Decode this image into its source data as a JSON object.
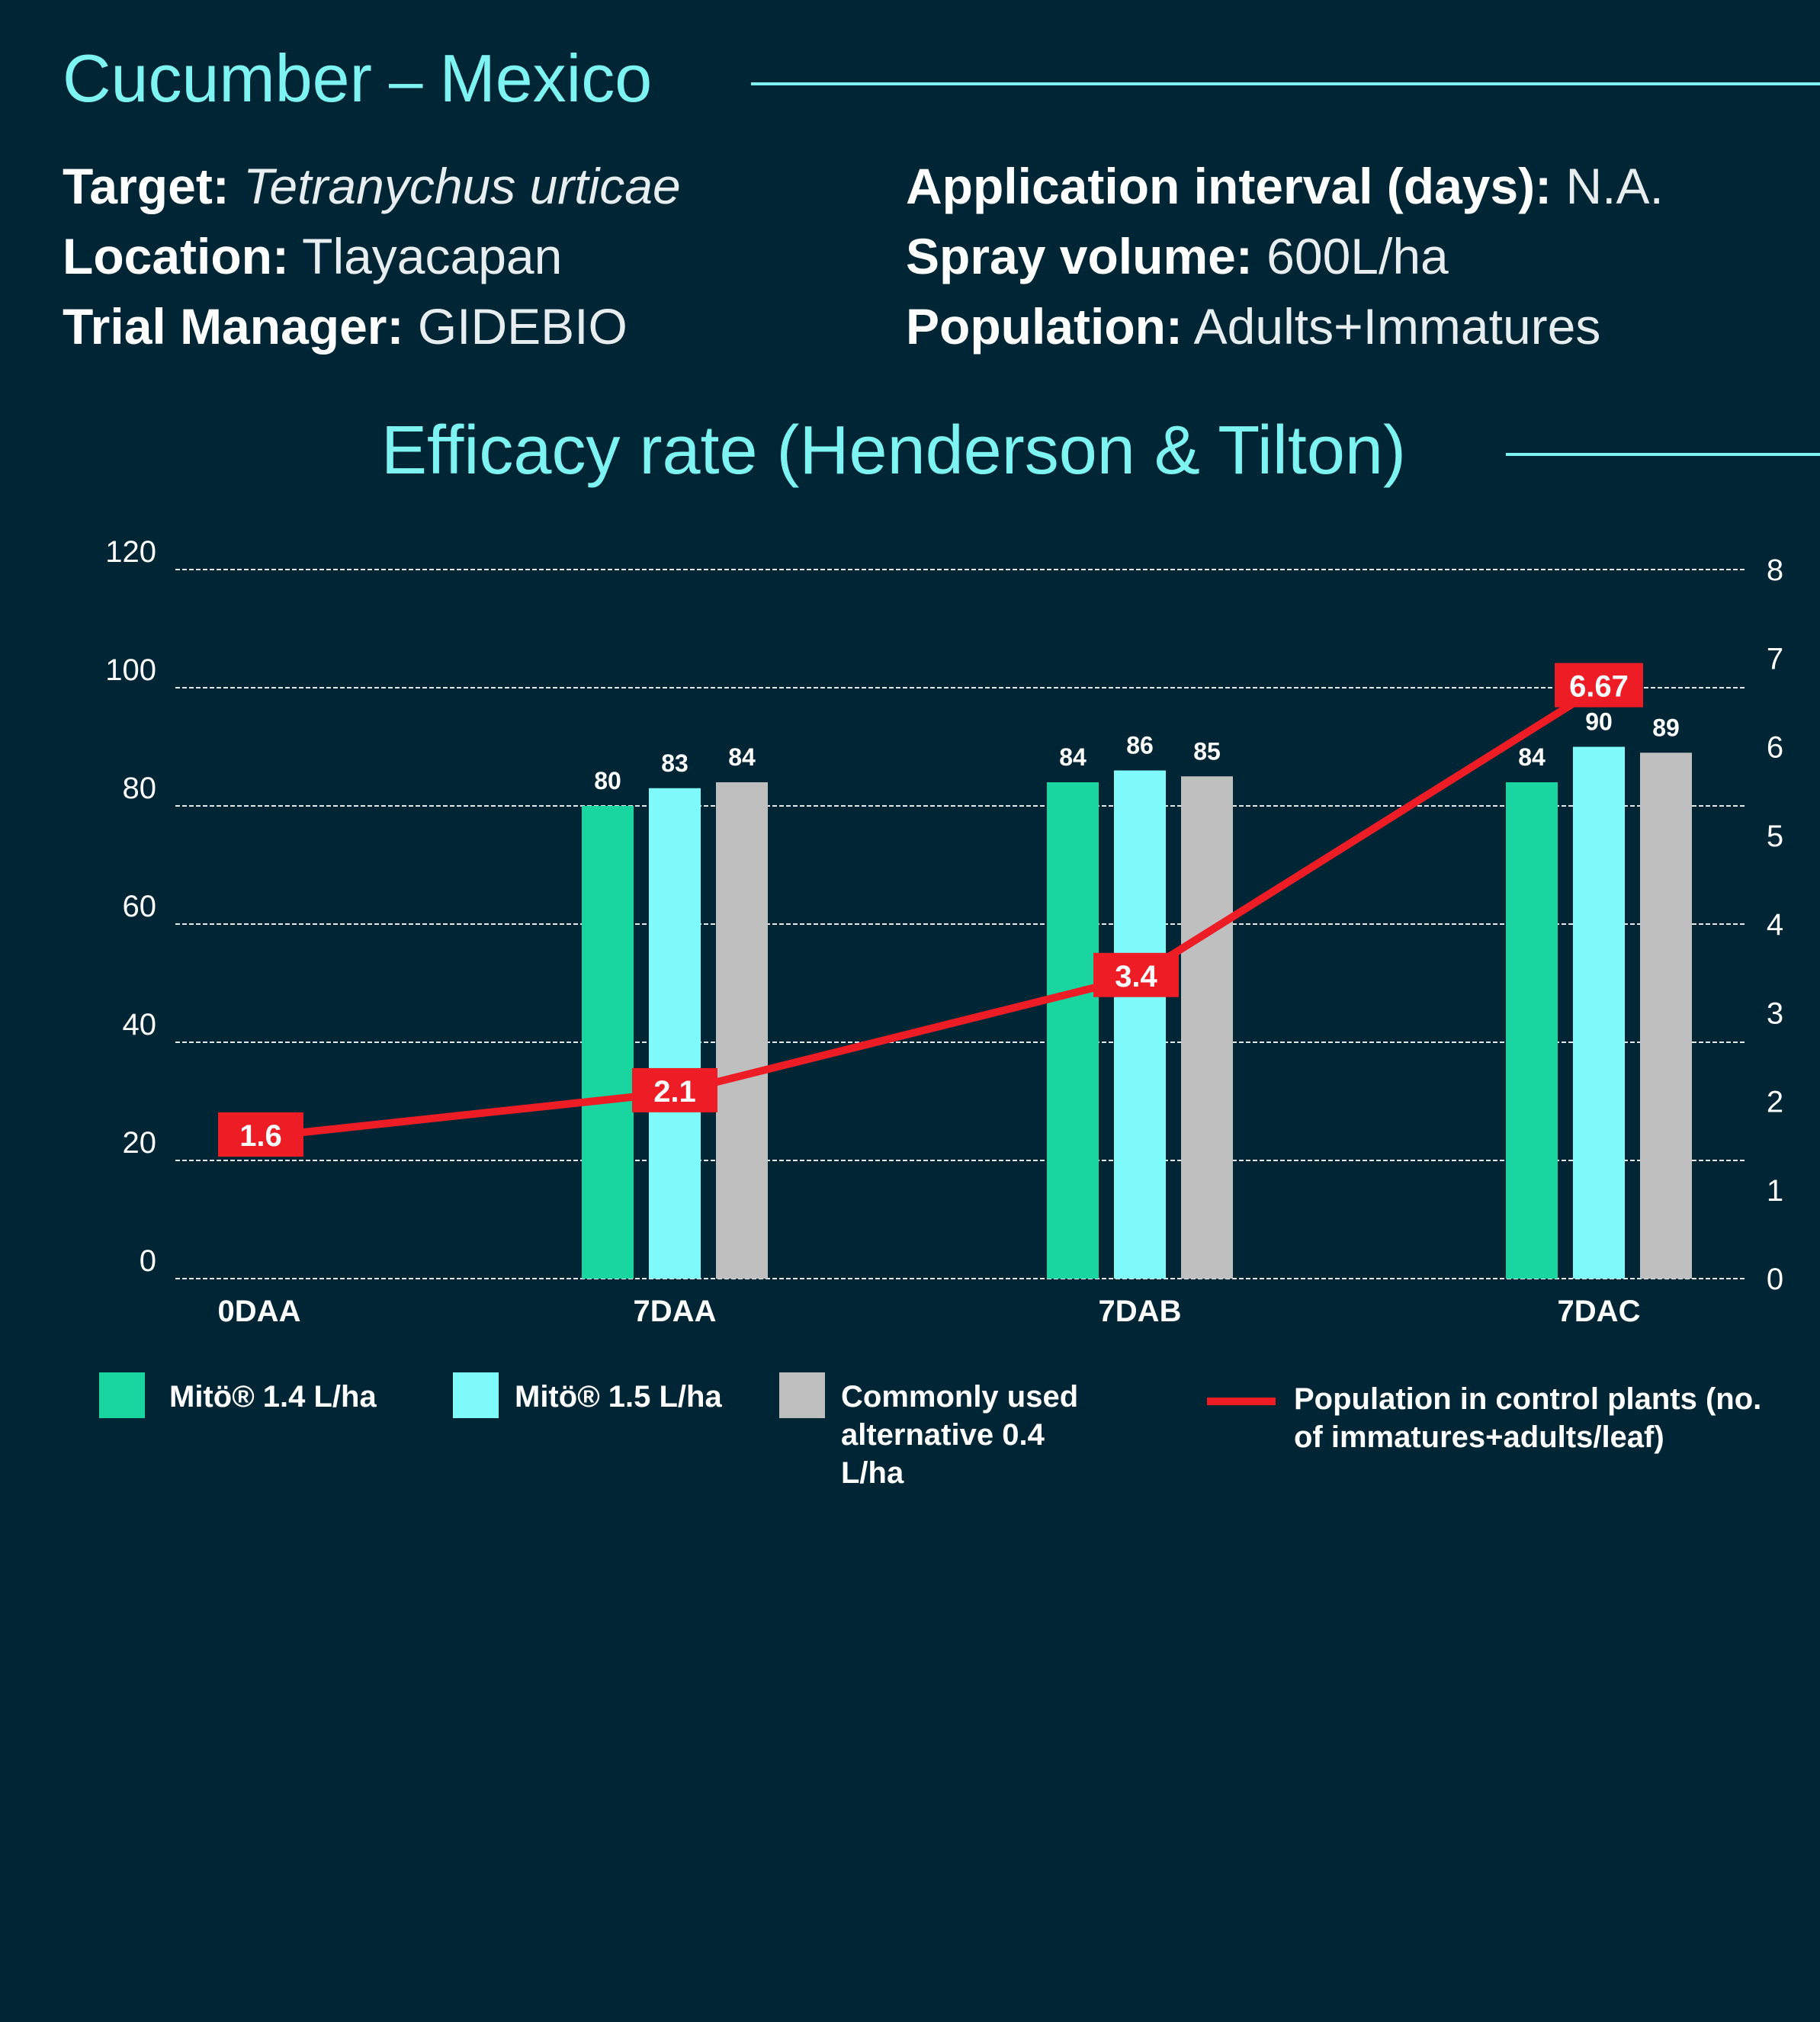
{
  "header": {
    "crop": "Cucumber",
    "separator": "–",
    "country": "Mexico"
  },
  "info_left": [
    {
      "key": "Target:",
      "value": "Tetranychus urticae"
    },
    {
      "key": "Location:",
      "value": "Tlayacapan"
    },
    {
      "key": "Trial Manager:",
      "value": "GIDEBIO"
    }
  ],
  "info_right": [
    {
      "key": "Application interval (days):",
      "value": "N.A."
    },
    {
      "key": "Spray volume:",
      "value": "600L/ha"
    },
    {
      "key": "Population:",
      "value": "Adults+Immatures"
    }
  ],
  "colors": {
    "background": "#002636",
    "accent": "#7ef4f2",
    "mito14": "#19d59f",
    "mito15": "#7ffbfb",
    "alternative": "#bfbfbf",
    "population": "#ee1c25"
  },
  "chart_data": {
    "type": "bar",
    "title": "Efficacy rate (Henderson & Tilton)",
    "categories": [
      "0DAA",
      "7DAA",
      "7DAB",
      "7DAC"
    ],
    "series": [
      {
        "name": "Mitö® 1.4 L/ha",
        "values": [
          null,
          80,
          84,
          84
        ]
      },
      {
        "name": "Mitö® 1.5 L/ha",
        "values": [
          null,
          83,
          86,
          90
        ]
      },
      {
        "name": "Commonly used alternative 0.4 L/ha",
        "values": [
          null,
          84,
          85,
          89
        ]
      }
    ],
    "line_series": {
      "name": "Population in control plants (no. of immatures+adults/leaf)",
      "axis": "right",
      "values": [
        1.6,
        2.1,
        3.4,
        6.67
      ],
      "labels": [
        "1.6",
        "2.1",
        "3.4",
        "6.67"
      ]
    },
    "ylim": [
      0,
      120
    ],
    "yticks": [
      "0",
      "20",
      "40",
      "60",
      "80",
      "100",
      "120"
    ],
    "y2lim": [
      0,
      8
    ],
    "y2ticks": [
      "0",
      "1",
      "2",
      "3",
      "4",
      "5",
      "6",
      "7",
      "8"
    ],
    "grid": true,
    "legend": [
      {
        "label": "Mitö® 1.4 L/ha",
        "kind": "swatch"
      },
      {
        "label": "Mitö® 1.5 L/ha",
        "kind": "swatch"
      },
      {
        "label": "Commonly used alternative 0.4 L/ha",
        "kind": "swatch"
      },
      {
        "label": "Population in control plants (no. of immatures+adults/leaf)",
        "kind": "line"
      }
    ]
  }
}
